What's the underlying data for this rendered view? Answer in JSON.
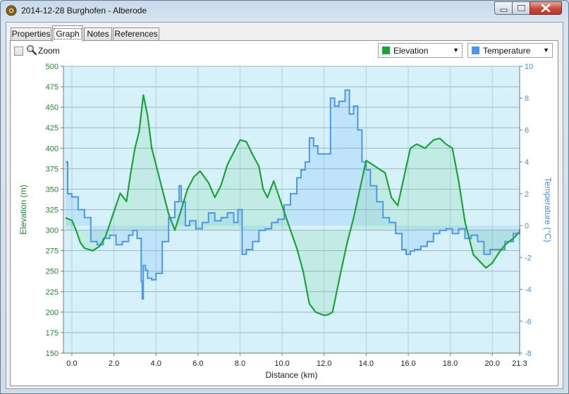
{
  "window": {
    "title": "2014-12-28 Burghofen - Alberode"
  },
  "tabs": [
    {
      "label": "Properties"
    },
    {
      "label": "Graph"
    },
    {
      "label": "Notes"
    },
    {
      "label": "References"
    }
  ],
  "toolbar": {
    "zoom_label": "Zoom",
    "series_selects": [
      {
        "label": "Elevation",
        "color": "#1aa338"
      },
      {
        "label": "Temperature",
        "color": "#4d97e6"
      }
    ]
  },
  "chart_data": {
    "type": "area",
    "xlabel": "Distance (km)",
    "ylabel": "Elevation (m)",
    "y2label": "Temperature (°C)",
    "xlim": [
      -0.4,
      21.3
    ],
    "ylim": [
      150,
      500
    ],
    "y2lim": [
      -8,
      10
    ],
    "x_ticks": [
      "0.0",
      "2.0",
      "4.0",
      "6.0",
      "8.0",
      "10.0",
      "12.0",
      "14.0",
      "16.0",
      "18.0",
      "20.0",
      "21.3"
    ],
    "y_ticks": [
      "150",
      "175",
      "200",
      "225",
      "250",
      "275",
      "300",
      "325",
      "350",
      "375",
      "400",
      "425",
      "450",
      "475",
      "500"
    ],
    "y2_ticks": [
      "-8",
      "-6",
      "-4",
      "-2",
      "0",
      "2",
      "4",
      "6",
      "8",
      "10"
    ],
    "grid": true,
    "series": [
      {
        "name": "Elevation",
        "axis": "left",
        "color": "#1aa338",
        "x": [
          -0.3,
          0.0,
          0.2,
          0.4,
          0.6,
          1.0,
          1.3,
          1.6,
          1.9,
          2.3,
          2.6,
          2.8,
          3.0,
          3.2,
          3.4,
          3.6,
          3.8,
          4.0,
          4.3,
          4.6,
          4.9,
          5.2,
          5.5,
          5.8,
          6.1,
          6.5,
          6.8,
          7.1,
          7.4,
          7.8,
          8.0,
          8.3,
          8.6,
          8.9,
          9.1,
          9.3,
          9.6,
          10.0,
          10.4,
          10.7,
          11.0,
          11.3,
          11.6,
          12.0,
          12.2,
          12.4,
          12.6,
          12.8,
          13.1,
          13.4,
          13.7,
          14.0,
          14.3,
          14.6,
          14.9,
          15.2,
          15.5,
          15.8,
          16.1,
          16.4,
          16.8,
          17.2,
          17.5,
          17.8,
          18.1,
          18.4,
          18.7,
          18.9,
          19.1,
          19.4,
          19.7,
          20.0,
          20.3,
          20.6,
          21.0,
          21.3
        ],
        "y": [
          315,
          312,
          300,
          285,
          278,
          275,
          280,
          292,
          315,
          345,
          335,
          370,
          400,
          420,
          465,
          440,
          400,
          380,
          350,
          320,
          300,
          325,
          350,
          365,
          372,
          358,
          340,
          355,
          380,
          400,
          410,
          408,
          392,
          378,
          350,
          340,
          360,
          330,
          300,
          278,
          250,
          210,
          200,
          196,
          197,
          200,
          225,
          250,
          285,
          315,
          350,
          385,
          380,
          375,
          370,
          340,
          330,
          365,
          400,
          405,
          400,
          410,
          412,
          405,
          400,
          360,
          310,
          290,
          270,
          262,
          254,
          260,
          272,
          282,
          290,
          298
        ]
      },
      {
        "name": "Temperature",
        "axis": "right",
        "color": "#4d97e6",
        "x": [
          -0.3,
          -0.2,
          0.0,
          0.3,
          0.6,
          0.9,
          1.2,
          1.5,
          1.8,
          2.1,
          2.4,
          2.7,
          2.9,
          3.1,
          3.3,
          3.35,
          3.4,
          3.5,
          3.6,
          3.8,
          4.0,
          4.3,
          4.6,
          4.9,
          5.1,
          5.2,
          5.4,
          5.6,
          5.9,
          6.2,
          6.5,
          6.8,
          7.1,
          7.4,
          7.7,
          7.9,
          8.1,
          8.3,
          8.6,
          8.9,
          9.2,
          9.5,
          9.8,
          10.1,
          10.4,
          10.7,
          10.9,
          11.1,
          11.3,
          11.5,
          11.7,
          12.0,
          12.3,
          12.5,
          12.7,
          13.0,
          13.2,
          13.4,
          13.6,
          13.8,
          14.0,
          14.2,
          14.5,
          14.8,
          15.1,
          15.4,
          15.7,
          15.9,
          16.1,
          16.3,
          16.6,
          16.9,
          17.2,
          17.5,
          17.8,
          18.1,
          18.4,
          18.7,
          19.0,
          19.3,
          19.6,
          19.9,
          20.2,
          20.6,
          21.0,
          21.3
        ],
        "y": [
          4.0,
          2.0,
          1.8,
          1.0,
          0.5,
          -1.0,
          -1.2,
          -0.8,
          -0.6,
          -1.2,
          -1.0,
          -0.6,
          -0.3,
          -0.8,
          -3.5,
          -4.6,
          -2.5,
          -2.8,
          -3.3,
          -3.4,
          -3.0,
          -1.0,
          0.5,
          1.5,
          2.5,
          1.5,
          0.0,
          0.3,
          -0.2,
          0.2,
          0.8,
          0.3,
          0.5,
          0.8,
          0.2,
          1.0,
          -1.8,
          -1.5,
          -1.0,
          -0.3,
          -0.2,
          0.2,
          0.4,
          1.3,
          2.0,
          3.0,
          3.5,
          4.0,
          5.5,
          5.0,
          4.5,
          4.5,
          8.0,
          7.5,
          7.8,
          8.5,
          7.0,
          7.5,
          6.0,
          4.0,
          3.5,
          2.5,
          1.5,
          0.5,
          0.2,
          -0.5,
          -1.5,
          -1.8,
          -1.6,
          -1.5,
          -1.3,
          -1.0,
          -0.5,
          -0.3,
          -0.2,
          -0.5,
          -0.2,
          -0.8,
          -0.6,
          -1.0,
          -1.8,
          -1.5,
          -1.5,
          -1.0,
          -0.5,
          -0.2
        ]
      }
    ]
  }
}
